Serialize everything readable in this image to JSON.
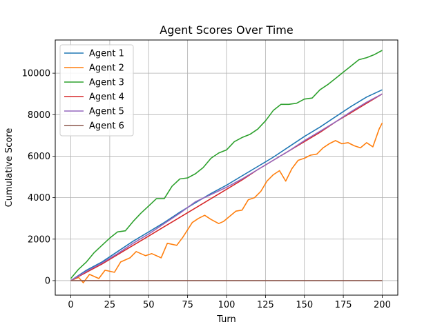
{
  "chart_data": {
    "type": "line",
    "title": "Agent Scores Over Time",
    "xlabel": "Turn",
    "ylabel": "Cumulative Score",
    "xlim": [
      -10,
      210
    ],
    "ylim": [
      -700,
      11600
    ],
    "xticks": [
      0,
      25,
      50,
      75,
      100,
      125,
      150,
      175,
      200
    ],
    "yticks": [
      0,
      2000,
      4000,
      6000,
      8000,
      10000
    ],
    "grid": true,
    "legend_position": "top-left",
    "series": [
      {
        "name": "Agent 1",
        "color": "#1f77b4",
        "x": [
          0,
          10,
          20,
          30,
          40,
          50,
          60,
          70,
          80,
          90,
          100,
          110,
          120,
          130,
          140,
          150,
          160,
          170,
          180,
          190,
          200
        ],
        "y": [
          0,
          500,
          900,
          1400,
          1900,
          2350,
          2800,
          3300,
          3750,
          4200,
          4600,
          5050,
          5500,
          5950,
          6450,
          6950,
          7400,
          7900,
          8400,
          8850,
          9200
        ]
      },
      {
        "name": "Agent 2",
        "color": "#ff7f0e",
        "x": [
          0,
          5,
          8,
          12,
          18,
          22,
          28,
          32,
          38,
          42,
          48,
          52,
          58,
          62,
          68,
          72,
          78,
          82,
          86,
          90,
          95,
          98,
          102,
          106,
          110,
          114,
          118,
          122,
          126,
          130,
          134,
          138,
          142,
          146,
          150,
          154,
          158,
          162,
          166,
          170,
          174,
          178,
          182,
          186,
          190,
          194,
          198,
          200
        ],
        "y": [
          0,
          150,
          -100,
          300,
          100,
          500,
          400,
          900,
          1100,
          1400,
          1200,
          1300,
          1100,
          1800,
          1700,
          2100,
          2800,
          3000,
          3150,
          2950,
          2750,
          2850,
          3100,
          3350,
          3400,
          3900,
          4000,
          4300,
          4800,
          5100,
          5300,
          4800,
          5400,
          5800,
          5900,
          6050,
          6100,
          6400,
          6600,
          6750,
          6600,
          6650,
          6500,
          6400,
          6650,
          6450,
          7300,
          7600
        ]
      },
      {
        "name": "Agent 3",
        "color": "#2ca02c",
        "x": [
          0,
          5,
          10,
          15,
          20,
          25,
          30,
          35,
          40,
          45,
          50,
          55,
          60,
          65,
          70,
          75,
          80,
          85,
          90,
          95,
          100,
          105,
          110,
          115,
          120,
          125,
          130,
          135,
          140,
          145,
          150,
          155,
          160,
          165,
          170,
          175,
          180,
          185,
          190,
          195,
          200
        ],
        "y": [
          100,
          550,
          900,
          1350,
          1700,
          2050,
          2350,
          2400,
          2850,
          3250,
          3600,
          3950,
          3950,
          4550,
          4900,
          4950,
          5150,
          5450,
          5900,
          6150,
          6300,
          6700,
          6900,
          7050,
          7300,
          7700,
          8200,
          8500,
          8500,
          8550,
          8750,
          8800,
          9200,
          9450,
          9750,
          10050,
          10350,
          10650,
          10750,
          10900,
          11100
        ]
      },
      {
        "name": "Agent 4",
        "color": "#d62728",
        "x": [
          0,
          10,
          20,
          30,
          40,
          50,
          60,
          70,
          80,
          90,
          100,
          110,
          120,
          130,
          140,
          150,
          160,
          170,
          180,
          190,
          200
        ],
        "y": [
          0,
          400,
          800,
          1250,
          1700,
          2150,
          2600,
          3050,
          3500,
          3950,
          4400,
          4850,
          5350,
          5800,
          6250,
          6700,
          7150,
          7650,
          8100,
          8550,
          9000
        ]
      },
      {
        "name": "Agent 5",
        "color": "#9467bd",
        "x": [
          0,
          10,
          20,
          30,
          40,
          50,
          60,
          70,
          80,
          90,
          100,
          110,
          120,
          130,
          140,
          150,
          160,
          170,
          180,
          190,
          200
        ],
        "y": [
          0,
          450,
          850,
          1300,
          1800,
          2250,
          2750,
          3250,
          3800,
          4150,
          4500,
          4900,
          5350,
          5800,
          6250,
          6750,
          7200,
          7650,
          8150,
          8600,
          9000
        ]
      },
      {
        "name": "Agent 6",
        "color": "#8c564b",
        "x": [
          0,
          200
        ],
        "y": [
          0,
          0
        ]
      }
    ]
  }
}
